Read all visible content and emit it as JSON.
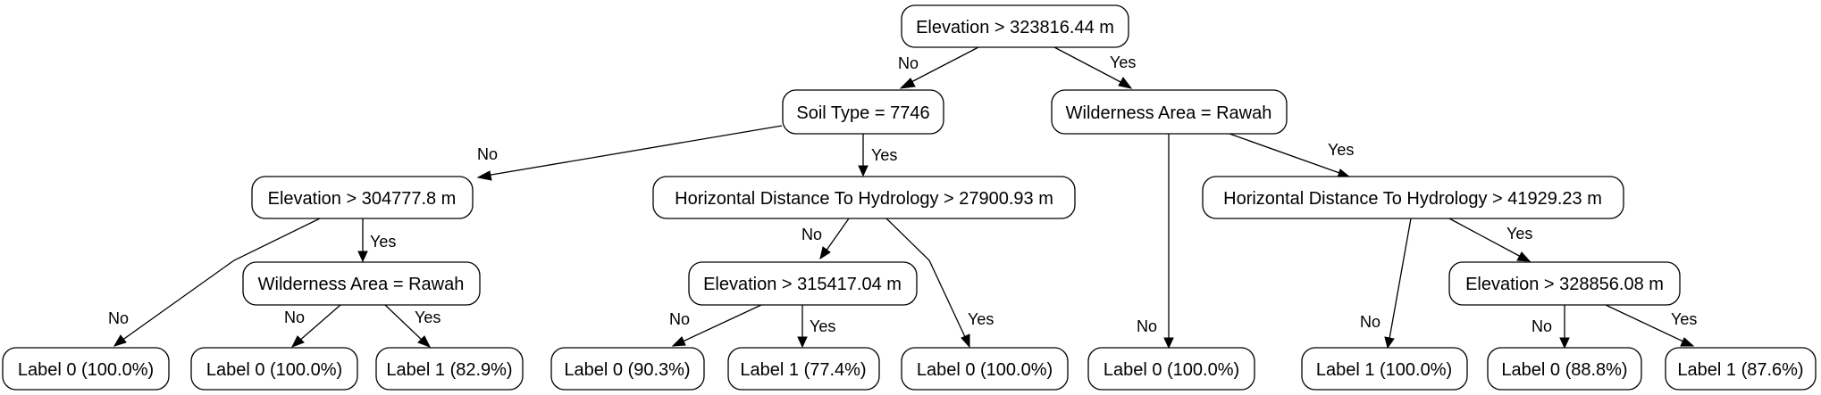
{
  "nodes": {
    "n_root": "Elevation > 323816.44 m",
    "n_soil": "Soil Type = 7746",
    "n_wild_r": "Wilderness Area = Rawah",
    "n_elev2": "Elevation > 304777.8 m",
    "n_hdist1": "Horizontal Distance To Hydrology > 27900.93 m",
    "n_hdist2": "Horizontal Distance To Hydrology > 41929.23 m",
    "n_wild_l": "Wilderness Area = Rawah",
    "n_elev3": "Elevation > 315417.04 m",
    "n_elev4": "Elevation > 328856.08 m",
    "leaf1": "Label 0 (100.0%)",
    "leaf2": "Label 0 (100.0%)",
    "leaf3": "Label 1 (82.9%)",
    "leaf4": "Label 0 (90.3%)",
    "leaf5": "Label 1 (77.4%)",
    "leaf6": "Label 0 (100.0%)",
    "leaf7": "Label 0 (100.0%)",
    "leaf8": "Label 1 (100.0%)",
    "leaf9": "Label 0 (88.8%)",
    "leaf10": "Label 1 (87.6%)"
  },
  "edge_labels": {
    "no": "No",
    "yes": "Yes"
  }
}
